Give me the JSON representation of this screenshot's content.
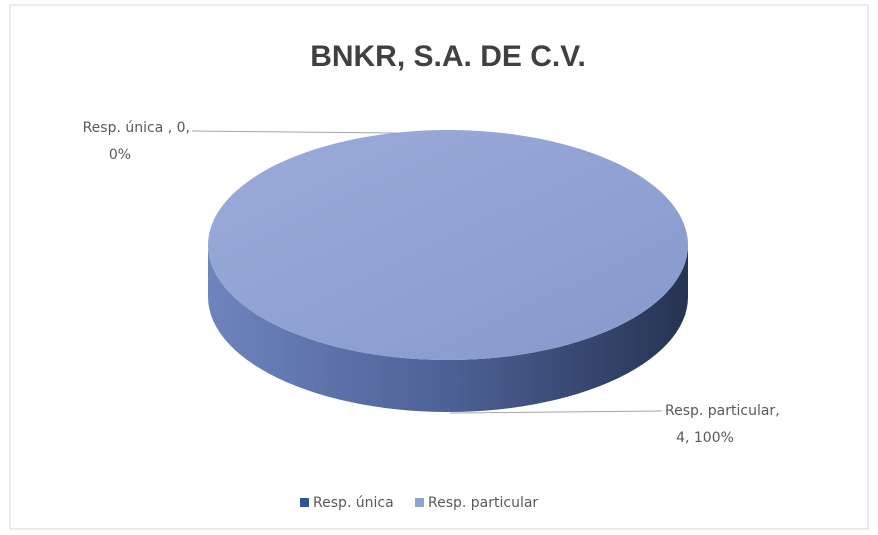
{
  "chart_data": {
    "type": "pie",
    "title": "BNKR, S.A. DE C.V.",
    "categories": [
      "Resp. única",
      "Resp. particular"
    ],
    "values": [
      0,
      4
    ],
    "colors": [
      "#2f5597",
      "#8fa2d4"
    ],
    "data_labels": [
      [
        "Resp. única , 0,",
        "0%"
      ],
      [
        "Resp. particular,",
        "4, 100%"
      ]
    ],
    "legend": "bottom"
  }
}
